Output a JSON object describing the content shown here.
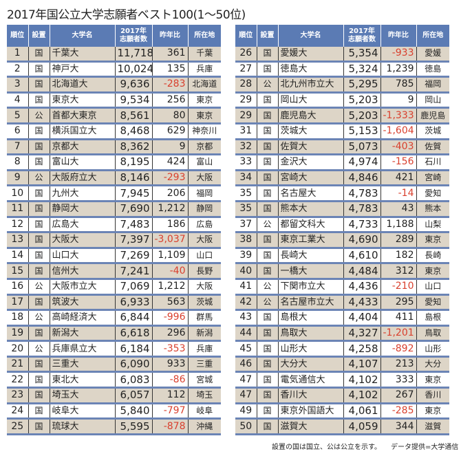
{
  "title": "2017年国公立大学志願者ベスト100(1〜50位)",
  "headers": {
    "rank": "順位",
    "type": "設置",
    "name": "大学名",
    "count_l1": "2017年",
    "count_l2": "志願者数",
    "change": "昨年比",
    "location": "所在地"
  },
  "colors": {
    "header": "#5b7bb4",
    "odd_row": "#ddd5c7",
    "negative": "#d9402e"
  },
  "rows": [
    [
      "1",
      "国",
      "千葉大",
      "11,718",
      "361",
      "千葉"
    ],
    [
      "2",
      "国",
      "神戸大",
      "10,024",
      "135",
      "兵庫"
    ],
    [
      "3",
      "国",
      "北海道大",
      "9,636",
      "-283",
      "北海道"
    ],
    [
      "4",
      "国",
      "東京大",
      "9,534",
      "256",
      "東京"
    ],
    [
      "5",
      "公",
      "首都大東京",
      "8,561",
      "80",
      "東京"
    ],
    [
      "6",
      "国",
      "横浜国立大",
      "8,468",
      "629",
      "神奈川"
    ],
    [
      "7",
      "国",
      "京都大",
      "8,362",
      "9",
      "京都"
    ],
    [
      "8",
      "国",
      "富山大",
      "8,195",
      "424",
      "富山"
    ],
    [
      "9",
      "公",
      "大阪府立大",
      "8,146",
      "-293",
      "大阪"
    ],
    [
      "10",
      "国",
      "九州大",
      "7,945",
      "206",
      "福岡"
    ],
    [
      "11",
      "国",
      "静岡大",
      "7,690",
      "1,212",
      "静岡"
    ],
    [
      "12",
      "国",
      "広島大",
      "7,483",
      "186",
      "広島"
    ],
    [
      "13",
      "国",
      "大阪大",
      "7,397",
      "-3,037",
      "大阪"
    ],
    [
      "14",
      "国",
      "山口大",
      "7,269",
      "1,109",
      "山口"
    ],
    [
      "15",
      "国",
      "信州大",
      "7,241",
      "-40",
      "長野"
    ],
    [
      "16",
      "公",
      "大阪市立大",
      "7,069",
      "1,212",
      "大阪"
    ],
    [
      "17",
      "国",
      "筑波大",
      "6,933",
      "563",
      "茨城"
    ],
    [
      "18",
      "公",
      "高崎経済大",
      "6,844",
      "-996",
      "群馬"
    ],
    [
      "19",
      "国",
      "新潟大",
      "6,618",
      "296",
      "新潟"
    ],
    [
      "20",
      "公",
      "兵庫県立大",
      "6,184",
      "-353",
      "兵庫"
    ],
    [
      "21",
      "国",
      "三重大",
      "6,090",
      "933",
      "三重"
    ],
    [
      "22",
      "国",
      "東北大",
      "6,083",
      "-86",
      "宮城"
    ],
    [
      "23",
      "国",
      "埼玉大",
      "6,057",
      "112",
      "埼玉"
    ],
    [
      "24",
      "国",
      "岐阜大",
      "5,840",
      "-797",
      "岐阜"
    ],
    [
      "25",
      "国",
      "琉球大",
      "5,595",
      "-878",
      "沖縄"
    ],
    [
      "26",
      "国",
      "愛媛大",
      "5,354",
      "-933",
      "愛媛"
    ],
    [
      "27",
      "国",
      "徳島大",
      "5,324",
      "1,239",
      "徳島"
    ],
    [
      "28",
      "公",
      "北九州市立大",
      "5,295",
      "785",
      "福岡"
    ],
    [
      "29",
      "国",
      "岡山大",
      "5,203",
      "9",
      "岡山"
    ],
    [
      "29",
      "国",
      "鹿児島大",
      "5,203",
      "-1,333",
      "鹿児島"
    ],
    [
      "31",
      "国",
      "茨城大",
      "5,153",
      "-1,604",
      "茨城"
    ],
    [
      "32",
      "国",
      "佐賀大",
      "5,073",
      "-403",
      "佐賀"
    ],
    [
      "33",
      "国",
      "金沢大",
      "4,974",
      "-156",
      "石川"
    ],
    [
      "34",
      "国",
      "宮崎大",
      "4,846",
      "421",
      "宮崎"
    ],
    [
      "35",
      "国",
      "名古屋大",
      "4,783",
      "-14",
      "愛知"
    ],
    [
      "35",
      "国",
      "熊本大",
      "4,783",
      "43",
      "熊本"
    ],
    [
      "37",
      "公",
      "都留文科大",
      "4,733",
      "1,188",
      "山梨"
    ],
    [
      "38",
      "国",
      "東京工業大",
      "4,690",
      "289",
      "東京"
    ],
    [
      "39",
      "国",
      "長崎大",
      "4,610",
      "182",
      "長崎"
    ],
    [
      "40",
      "国",
      "一橋大",
      "4,484",
      "312",
      "東京"
    ],
    [
      "41",
      "公",
      "下関市立大",
      "4,436",
      "-210",
      "山口"
    ],
    [
      "42",
      "公",
      "名古屋市立大",
      "4,433",
      "295",
      "愛知"
    ],
    [
      "43",
      "国",
      "島根大",
      "4,404",
      "411",
      "島根"
    ],
    [
      "44",
      "国",
      "鳥取大",
      "4,327",
      "-1,201",
      "鳥取"
    ],
    [
      "45",
      "国",
      "山形大",
      "4,258",
      "-892",
      "山形"
    ],
    [
      "46",
      "国",
      "大分大",
      "4,107",
      "213",
      "大分"
    ],
    [
      "47",
      "国",
      "電気通信大",
      "4,102",
      "333",
      "東京"
    ],
    [
      "47",
      "国",
      "香川大",
      "4,102",
      "267",
      "香川"
    ],
    [
      "49",
      "国",
      "東京外国語大",
      "4,061",
      "-285",
      "東京"
    ],
    [
      "50",
      "国",
      "滋賀大",
      "4,059",
      "344",
      "滋賀"
    ]
  ],
  "footer": {
    "note": "設置の国は国立、公は公立を示す。",
    "source": "データ提供=大学通信"
  }
}
